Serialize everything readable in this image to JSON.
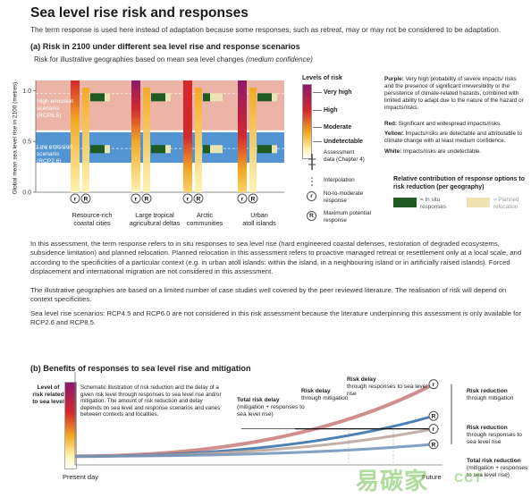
{
  "header": {
    "title": "Sea level rise risk and responses",
    "subtitle": "The term response is used here instead of adaptation because some responses, such as retreat, may or may not be considered to be adaptation."
  },
  "panel_a": {
    "heading": "(a) Risk in 2100 under different sea level rise and response scenarios",
    "subheading": "Risk for illustrative geographies based on mean sea level changes",
    "subheading_conf": "(medium confidence)",
    "ylabel": "Global mean sea level rise in 2100 (metres)",
    "high_scenario": [
      "High emission",
      "scenario",
      "(RCP8.5)"
    ],
    "low_scenario": [
      "Low emission",
      "scenario",
      "(RCP2.6)"
    ],
    "geographies": [
      {
        "line1": "Resource-rich",
        "line2": "coastal cities"
      },
      {
        "line1": "Large tropical",
        "line2": "agricultural deltas"
      },
      {
        "line1": "Arctic",
        "line2": "communities"
      },
      {
        "line1": "Urban",
        "line2": "atoll islands"
      }
    ],
    "legend": {
      "levels_title": "Levels of risk",
      "very_high": "Very high",
      "high": "High",
      "moderate": "Moderate",
      "undetectable": "Undetectable",
      "assessment": [
        "Assessment",
        "data (Chapter 4)"
      ],
      "interpolation": "Interpolation",
      "no_to_moderate": [
        "No-to-moderate",
        "response"
      ],
      "maximum": [
        "Maximum potential",
        "response"
      ],
      "purple_key": "Purple:",
      "purple_desc": "Very high probability of severe impacts/ risks and the presence of significant irreversibility or the persistence of climate-related hazards, combined with limited ability to adapt due to the nature of the hazard or impacts/risks.",
      "red_key": "Red:",
      "red_desc": "Significant and widespread impacts/risks.",
      "yellow_key": "Yellow:",
      "yellow_desc": "Impacts/risks are detectable and attributable to climate change with at least medium confidence.",
      "white_key": "White:",
      "white_desc": "Impacts/risks are undetectable.",
      "contrib_title": "Relative contribution of response options to risk reduction (per geography)",
      "in_situ": [
        "= In situ",
        "responses"
      ],
      "planned": [
        "= Planned",
        "relocation"
      ]
    },
    "circle_r_small": "r",
    "circle_r_big": "R"
  },
  "paragraphs": [
    "In this assessment, the term response refers to in situ responses to sea level rise (hard engineered coastal defenses, restoration of degraded ecosystems, subsidence limitation) and planned relocation. Planned relocation in this assessment refers to proactive managed retreat or resettlement only at a local scale, and according to the specificities of a particular context (e.g. in urban atoll islands: within the island, in a neighbouring island or in artificially raised islands). Forced displacement and international migration are not considered in this assessment.",
    "The illustrative geographies are based on a limited number of case studies well covered by the peer reviewed literature. The realisation of risk will depend on context specificities.",
    "Sea level rise scenarios: RCP4.5 and RCP6.0 are not considered in this risk assessment because the literature underpinning this assessment is only available for RCP2.6 and RCP8.5."
  ],
  "panel_b": {
    "heading": "(b) Benefits of responses to sea level rise and mitigation",
    "yaxis": [
      "Level of",
      "risk related",
      "to sea level"
    ],
    "description": "Schematic illustration of risk reduction and the delay of a given risk level through responses to sea level rise and/or mitigation. The amount of risk reduction and delay depends on sea level and response scenarios and varies between contexts and localities.",
    "total_delay_title": "Total risk delay",
    "total_delay_desc": "(mitigation + responses to sea level rise)",
    "delay_mit_title": "Risk delay",
    "delay_mit_desc": "through mitigation",
    "delay_resp_title": "Risk delay",
    "delay_resp_desc": "through responses to sea level rise",
    "red_mit_title": "Risk reduction",
    "red_mit_desc": "through mitigation",
    "red_resp_title": "Risk reduction",
    "red_resp_desc": "through responses to sea level rise",
    "total_red_title": "Total risk reduction",
    "total_red_desc": "(mitigation + responses to sea level rise)",
    "present_day": "Present day",
    "future": "Future"
  },
  "watermark": "易碳家",
  "watermark_sub": "CCT",
  "chart_data": [
    {
      "type": "bar",
      "title": "Risk in 2100 under different sea level rise and response scenarios",
      "ylabel": "Global mean sea level rise in 2100 (metres)",
      "ylim": [
        0,
        1.1
      ],
      "yticks": [
        0,
        0.5,
        1.0
      ],
      "scenario_bands": [
        {
          "name": "High emission scenario (RCP8.5)",
          "ymin": 0.61,
          "ymax": 1.1,
          "color": "#e8a796"
        },
        {
          "name": "Low emission scenario (RCP2.6)",
          "ymin": 0.29,
          "ymax": 0.59,
          "color": "#4a8fd0"
        }
      ],
      "categories": [
        "Resource-rich coastal cities",
        "Large tropical agricultural deltas",
        "Arctic communities",
        "Urban atoll islands"
      ],
      "risk_colors": {
        "very_high": "#8b1a6b",
        "high": "#d4282d",
        "moderate": "#f2a922",
        "undetectable": "#ffffff"
      }
    },
    {
      "type": "line",
      "title": "Benefits of responses to sea level rise and mitigation",
      "xlabel": "",
      "ylabel": "Level of risk related to sea level",
      "x": [
        0,
        1
      ],
      "series": [
        {
          "name": "",
          "values": [
            0.08,
            0.92
          ],
          "color": "#c77b78"
        },
        {
          "name": "",
          "values": [
            0.08,
            0.55
          ],
          "color": "#2e6aa6"
        },
        {
          "name": "",
          "values": [
            0.08,
            0.4
          ],
          "color": "#b9a39a"
        },
        {
          "name": "",
          "values": [
            0.08,
            0.22
          ],
          "color": "#6f8fb7"
        }
      ]
    }
  ]
}
